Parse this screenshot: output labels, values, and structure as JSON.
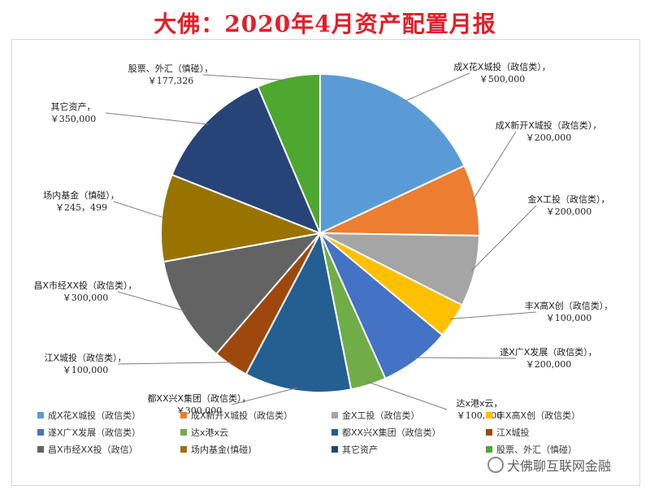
{
  "chart_data": {
    "type": "pie",
    "title": "大佛：2020年4月资产配置月报",
    "slices": [
      {
        "label": "成X花X城投（政信类）",
        "legend": "成X花X城投（政信类）",
        "value_text": "￥500,000",
        "value": 500000,
        "color": "#5b9bd5"
      },
      {
        "label": "成X新开X城投（政信类）",
        "legend": "成X新开X城投（政信类）",
        "value_text": "￥200,000",
        "value": 200000,
        "color": "#ed7d31"
      },
      {
        "label": "金X工投（政信类）",
        "legend": "金X工投（政信类）",
        "value_text": "￥200,000",
        "value": 200000,
        "color": "#a5a5a5"
      },
      {
        "label": "丰X高X创（政信类）",
        "legend": "丰X高X创（政信类）",
        "value_text": "￥100,000",
        "value": 100000,
        "color": "#ffc000"
      },
      {
        "label": "遂X广X发展（政信类）",
        "legend": "遂X广X发展（政信类）",
        "value_text": "￥200,000",
        "value": 200000,
        "color": "#4472c4"
      },
      {
        "label": "达x港x云",
        "legend": "达x港x云",
        "value_text": "￥100,000",
        "value": 100000,
        "color": "#70ad47"
      },
      {
        "label": "都XX兴X集团（政信类）",
        "legend": "都XX兴X集团（政信类）",
        "value_text": "￥300,000",
        "value": 300000,
        "color": "#255e91"
      },
      {
        "label": "江X城投（政信类）",
        "legend": "江X城投",
        "value_text": "￥100,000",
        "value": 100000,
        "color": "#9e480e"
      },
      {
        "label": "昌X市经XX投（政信类）",
        "legend": "昌X市经XX投（政信）",
        "value_text": "￥300,000",
        "value": 300000,
        "color": "#636363"
      },
      {
        "label": "场内基金（慎碰）",
        "legend": "场内基金(慎碰)",
        "value_text": "￥245，499",
        "value": 245499,
        "color": "#997300"
      },
      {
        "label": "其它资产",
        "legend": "其它资产",
        "value_text": "￥350,000",
        "value": 350000,
        "color": "#264478"
      },
      {
        "label": "股票、外汇（慎碰）",
        "legend": "股票、外汇（慎碰）",
        "value_text": "￥177,326",
        "value": 177326,
        "color": "#4ea72e"
      }
    ]
  },
  "watermark": "犬佛聊互联网金融",
  "watermark_icon": "wechat-icon"
}
